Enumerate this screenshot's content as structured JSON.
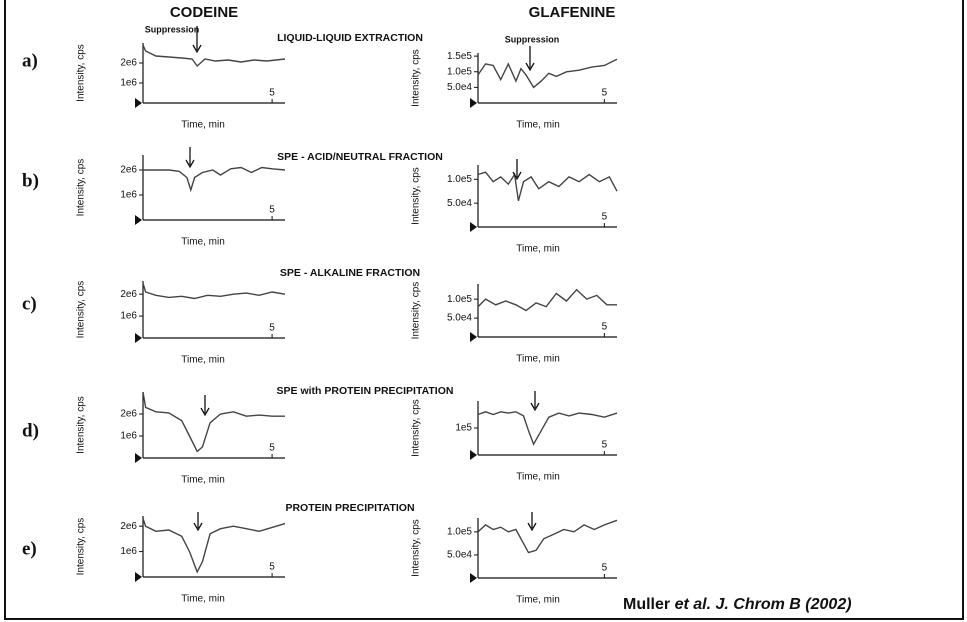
{
  "figure": {
    "columns": [
      "CODEINE",
      "GLAFENINE"
    ],
    "rows": [
      {
        "label": "a)",
        "title": "LIQUID-LIQUID EXTRACTION"
      },
      {
        "label": "b)",
        "title": "SPE - ACID/NEUTRAL FRACTION"
      },
      {
        "label": "c)",
        "title": "SPE - ALKALINE FRACTION"
      },
      {
        "label": "d)",
        "title": "SPE with PROTEIN PRECIPITATION"
      },
      {
        "label": "e)",
        "title": "PROTEIN PRECIPITATION"
      }
    ],
    "citation": {
      "author": "Muller",
      "etal": "et al.",
      "journal": "J. Chrom B (2002)"
    }
  },
  "chart_data": [
    {
      "type": "line",
      "xlabel": "Time, min",
      "ylabel": "Intensity, cps",
      "annotation": "Suppression",
      "color": "#444",
      "x": [
        0,
        0.1,
        0.5,
        1,
        1.5,
        1.9,
        2.1,
        2.4,
        2.8,
        3.3,
        3.8,
        4.3,
        4.8,
        5.5
      ],
      "values": [
        2900000.0,
        2600000.0,
        2350000.0,
        2300000.0,
        2250000.0,
        2200000.0,
        1850000.0,
        2200000.0,
        2100000.0,
        2150000.0,
        2050000.0,
        2150000.0,
        2100000.0,
        2200000.0
      ],
      "xlim": [
        0,
        5.5
      ],
      "xticks": [
        5
      ],
      "ylim": [
        0,
        3000000.0
      ],
      "yticks": [
        {
          "value": 1000000.0,
          "label": "1e6"
        },
        {
          "value": 2000000.0,
          "label": "2e6"
        }
      ]
    },
    {
      "type": "line",
      "xlabel": "Time, min",
      "ylabel": "Intensity, cps",
      "annotation": "Suppression",
      "color": "#444",
      "x": [
        0,
        0.3,
        0.6,
        0.9,
        1.2,
        1.5,
        1.7,
        1.9,
        2.2,
        2.5,
        2.8,
        3.1,
        3.5,
        4,
        4.5,
        5,
        5.5
      ],
      "values": [
        90000.0,
        125000.0,
        120000.0,
        75000.0,
        125000.0,
        70000.0,
        110000.0,
        90000.0,
        50000.0,
        70000.0,
        95000.0,
        85000.0,
        100000.0,
        105000.0,
        115000.0,
        120000.0,
        140000.0
      ],
      "xlim": [
        0,
        5.5
      ],
      "xticks": [
        5
      ],
      "ylim": [
        0,
        160000.0
      ],
      "yticks": [
        {
          "value": 50000.0,
          "label": "5.0e4"
        },
        {
          "value": 100000.0,
          "label": "1.0e5"
        },
        {
          "value": 150000.0,
          "label": "1.5e5"
        }
      ]
    },
    {
      "type": "line",
      "xlabel": "Time, min",
      "ylabel": "Intensity, cps",
      "color": "#444",
      "x": [
        0,
        0.5,
        1,
        1.4,
        1.7,
        1.85,
        2.0,
        2.3,
        2.7,
        3,
        3.4,
        3.8,
        4.2,
        4.6,
        5,
        5.5
      ],
      "values": [
        2000000.0,
        2000000.0,
        2000000.0,
        1950000.0,
        1700000.0,
        1200000.0,
        1700000.0,
        1900000.0,
        2000000.0,
        1800000.0,
        2050000.0,
        2100000.0,
        1900000.0,
        2100000.0,
        2050000.0,
        2000000.0
      ],
      "xlim": [
        0,
        5.5
      ],
      "xticks": [
        5
      ],
      "ylim": [
        0,
        2600000.0
      ],
      "yticks": [
        {
          "value": 1000000.0,
          "label": "1e6"
        },
        {
          "value": 2000000.0,
          "label": "2e6"
        }
      ]
    },
    {
      "type": "line",
      "xlabel": "Time, min",
      "ylabel": "Intensity, cps",
      "color": "#444",
      "x": [
        0,
        0.3,
        0.6,
        0.9,
        1.2,
        1.45,
        1.6,
        1.8,
        2.1,
        2.4,
        2.8,
        3.2,
        3.6,
        4,
        4.4,
        4.8,
        5.2,
        5.5
      ],
      "values": [
        110000.0,
        115000.0,
        95000.0,
        105000.0,
        90000.0,
        110000.0,
        55000.0,
        95000.0,
        105000.0,
        80000.0,
        95000.0,
        85000.0,
        105000.0,
        95000.0,
        110000.0,
        95000.0,
        105000.0,
        75000.0
      ],
      "xlim": [
        0,
        5.5
      ],
      "xticks": [
        5
      ],
      "ylim": [
        0,
        130000.0
      ],
      "yticks": [
        {
          "value": 50000.0,
          "label": "5.0e4"
        },
        {
          "value": 100000.0,
          "label": "1.0e5"
        }
      ]
    },
    {
      "type": "line",
      "xlabel": "Time, min",
      "ylabel": "Intensity, cps",
      "color": "#444",
      "x": [
        0,
        0.1,
        0.5,
        1,
        1.5,
        2,
        2.5,
        3,
        3.5,
        4,
        4.5,
        5,
        5.5
      ],
      "values": [
        2500000.0,
        2100000.0,
        1950000.0,
        1850000.0,
        1900000.0,
        1800000.0,
        1950000.0,
        1900000.0,
        2000000.0,
        2050000.0,
        1950000.0,
        2100000.0,
        2000000.0
      ],
      "xlim": [
        0,
        5.5
      ],
      "xticks": [
        5
      ],
      "ylim": [
        0,
        2600000.0
      ],
      "yticks": [
        {
          "value": 1000000.0,
          "label": "1e6"
        },
        {
          "value": 2000000.0,
          "label": "2e6"
        }
      ]
    },
    {
      "type": "line",
      "xlabel": "Time, min",
      "ylabel": "Intensity, cps",
      "color": "#444",
      "x": [
        0,
        0.3,
        0.7,
        1.1,
        1.5,
        1.9,
        2.3,
        2.7,
        3.1,
        3.5,
        3.9,
        4.3,
        4.7,
        5.1,
        5.5
      ],
      "values": [
        80000.0,
        100000.0,
        85000.0,
        95000.0,
        85000.0,
        70000.0,
        90000.0,
        80000.0,
        115000.0,
        95000.0,
        125000.0,
        100000.0,
        110000.0,
        85000.0,
        85000.0
      ],
      "xlim": [
        0,
        5.5
      ],
      "xticks": [
        5
      ],
      "ylim": [
        0,
        140000.0
      ],
      "yticks": [
        {
          "value": 50000.0,
          "label": "5.0e4"
        },
        {
          "value": 100000.0,
          "label": "1.0e5"
        }
      ]
    },
    {
      "type": "line",
      "xlabel": "Time, min",
      "ylabel": "Intensity, cps",
      "color": "#444",
      "x": [
        0,
        0.1,
        0.5,
        1,
        1.5,
        1.8,
        2.1,
        2.3,
        2.6,
        3,
        3.5,
        4,
        4.5,
        5,
        5.5
      ],
      "values": [
        3000000.0,
        2300000.0,
        2100000.0,
        2050000.0,
        1700000.0,
        1000000.0,
        300000.0,
        500000.0,
        1600000.0,
        2000000.0,
        2100000.0,
        1900000.0,
        1950000.0,
        1900000.0,
        1900000.0
      ],
      "xlim": [
        0,
        5.5
      ],
      "xticks": [
        5
      ],
      "ylim": [
        0,
        3000000.0
      ],
      "yticks": [
        {
          "value": 1000000.0,
          "label": "1e6"
        },
        {
          "value": 2000000.0,
          "label": "2e6"
        }
      ]
    },
    {
      "type": "line",
      "xlabel": "Time, min",
      "ylabel": "Intensity, cps",
      "color": "#444",
      "x": [
        0,
        0.3,
        0.6,
        0.9,
        1.2,
        1.5,
        1.8,
        2.0,
        2.2,
        2.5,
        2.8,
        3.2,
        3.6,
        4,
        4.5,
        5,
        5.5
      ],
      "values": [
        150000.0,
        160000.0,
        150000.0,
        160000.0,
        155000.0,
        160000.0,
        145000.0,
        90000.0,
        40000.0,
        90000.0,
        140000.0,
        155000.0,
        145000.0,
        155000.0,
        150000.0,
        140000.0,
        155000.0
      ],
      "xlim": [
        0,
        5.5
      ],
      "xticks": [
        5
      ],
      "ylim": [
        0,
        200000.0
      ],
      "yticks": [
        {
          "value": 100000.0,
          "label": "1e5"
        }
      ]
    },
    {
      "type": "line",
      "xlabel": "Time, min",
      "ylabel": "Intensity, cps",
      "color": "#444",
      "x": [
        0,
        0.1,
        0.5,
        1,
        1.5,
        1.8,
        2.1,
        2.3,
        2.6,
        3,
        3.5,
        4,
        4.5,
        5,
        5.5
      ],
      "values": [
        2300000.0,
        2000000.0,
        1800000.0,
        1850000.0,
        1600000.0,
        1000000.0,
        200000.0,
        600000.0,
        1700000.0,
        1900000.0,
        2000000.0,
        1900000.0,
        1800000.0,
        1950000.0,
        2100000.0
      ],
      "xlim": [
        0,
        5.5
      ],
      "xticks": [
        5
      ],
      "ylim": [
        0,
        2400000.0
      ],
      "yticks": [
        {
          "value": 1000000.0,
          "label": "1e6"
        },
        {
          "value": 2000000.0,
          "label": "2e6"
        }
      ]
    },
    {
      "type": "line",
      "xlabel": "Time, min",
      "ylabel": "Intensity, cps",
      "color": "#444",
      "x": [
        0,
        0.3,
        0.6,
        0.9,
        1.2,
        1.5,
        1.8,
        2.0,
        2.3,
        2.6,
        3,
        3.4,
        3.8,
        4.2,
        4.6,
        5,
        5.5
      ],
      "values": [
        100000.0,
        115000.0,
        105000.0,
        110000.0,
        100000.0,
        105000.0,
        75000.0,
        55000.0,
        60000.0,
        85000.0,
        95000.0,
        105000.0,
        100000.0,
        115000.0,
        105000.0,
        115000.0,
        125000.0
      ],
      "xlim": [
        0,
        5.5
      ],
      "xticks": [
        5
      ],
      "ylim": [
        0,
        130000.0
      ],
      "yticks": [
        {
          "value": 50000.0,
          "label": "5.0e4"
        },
        {
          "value": 100000.0,
          "label": "1.0e5"
        }
      ]
    }
  ]
}
